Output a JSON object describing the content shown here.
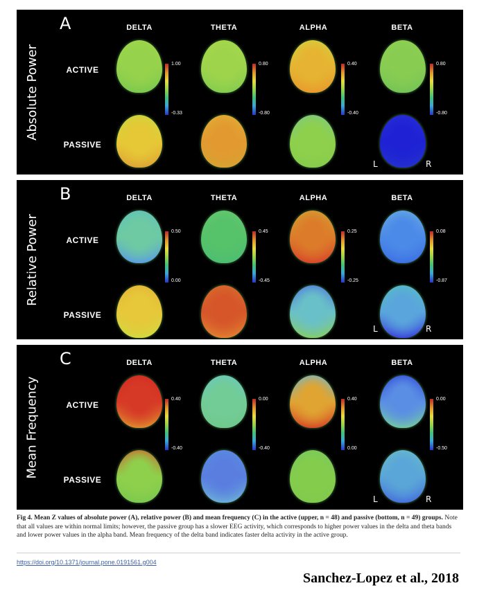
{
  "panels": [
    {
      "letter": "A",
      "title": "Absolute Power",
      "bands": [
        "DELTA",
        "THETA",
        "ALPHA",
        "BETA"
      ],
      "groups": [
        "ACTIVE",
        "PASSIVE"
      ],
      "scales": [
        {
          "max": "1.00",
          "min": "-0.33"
        },
        {
          "max": "0.80",
          "min": "-0.80"
        },
        {
          "max": "0.40",
          "min": "-0.40"
        },
        {
          "max": "0.80",
          "min": "-0.80"
        }
      ],
      "heads": [
        {
          "top": "#9fd64a",
          "mid": "#96d24c",
          "bottom": "#7cc84e"
        },
        {
          "top": "#a6d84a",
          "mid": "#9ed44c",
          "bottom": "#84cc4e"
        },
        {
          "top": "#d2d23e",
          "mid": "#e6b432",
          "bottom": "#e89a2c"
        },
        {
          "top": "#8ed050",
          "mid": "#88cc52",
          "bottom": "#74c456"
        },
        {
          "top": "#c8d83e",
          "mid": "#e6c836",
          "bottom": "#e0a434"
        },
        {
          "top": "#e0b234",
          "mid": "#e29a30",
          "bottom": "#d8a232"
        },
        {
          "top": "#7cc88a",
          "mid": "#8ed04c",
          "bottom": "#86cc4c"
        },
        {
          "top": "#2a30d8",
          "mid": "#1e22d4",
          "bottom": "#2430cc"
        }
      ],
      "sides": [
        "L",
        "R"
      ]
    },
    {
      "letter": "B",
      "title": "Relative Power",
      "bands": [
        "DELTA",
        "THETA",
        "ALPHA",
        "BETA"
      ],
      "groups": [
        "ACTIVE",
        "PASSIVE"
      ],
      "scales": [
        {
          "max": "0.50",
          "min": "0.00"
        },
        {
          "max": "0.45",
          "min": "-0.45"
        },
        {
          "max": "0.25",
          "min": "-0.25"
        },
        {
          "max": "0.08",
          "min": "-0.87"
        }
      ],
      "heads": [
        {
          "top": "#5ec0c0",
          "mid": "#6ecaa2",
          "bottom": "#5a9ee0"
        },
        {
          "top": "#66c870",
          "mid": "#56c26a",
          "bottom": "#4cbe72"
        },
        {
          "top": "#d2a432",
          "mid": "#dc7c2a",
          "bottom": "#d8462a"
        },
        {
          "top": "#6aaee0",
          "mid": "#4c8ae8",
          "bottom": "#3c70e4"
        },
        {
          "top": "#e6b234",
          "mid": "#e6c83a",
          "bottom": "#d4d83e"
        },
        {
          "top": "#d8702c",
          "mid": "#d6562a",
          "bottom": "#e08030"
        },
        {
          "top": "#4a72e0",
          "mid": "#6ac0c8",
          "bottom": "#84cc6a"
        },
        {
          "top": "#56c0c0",
          "mid": "#5aa6dc",
          "bottom": "#3c46dc"
        }
      ],
      "sides": [
        "L",
        "R"
      ]
    },
    {
      "letter": "C",
      "title": "Mean Frequency",
      "bands": [
        "DELTA",
        "THETA",
        "ALPHA",
        "BETA"
      ],
      "groups": [
        "ACTIVE",
        "PASSIVE"
      ],
      "scales": [
        {
          "max": "0.40",
          "min": "-0.40"
        },
        {
          "max": "0.00",
          "min": "-0.40"
        },
        {
          "max": "0.40",
          "min": "0.00"
        },
        {
          "max": "0.00",
          "min": "-0.50"
        }
      ],
      "heads": [
        {
          "top": "#d42822",
          "mid": "#d63a26",
          "bottom": "#de8a2e"
        },
        {
          "top": "#6ac8c4",
          "mid": "#72cc96",
          "bottom": "#70c88c"
        },
        {
          "top": "#6ab8d8",
          "mid": "#e0a432",
          "bottom": "#d64a26"
        },
        {
          "top": "#2e46d8",
          "mid": "#5a8ee4",
          "bottom": "#72c6a6"
        },
        {
          "top": "#d45a2a",
          "mid": "#8ed04c",
          "bottom": "#7cc84e"
        },
        {
          "top": "#5a8ee2",
          "mid": "#5a7ee0",
          "bottom": "#6aaed8"
        },
        {
          "top": "#78c860",
          "mid": "#84cc4c",
          "bottom": "#80ca4c"
        },
        {
          "top": "#6abcc8",
          "mid": "#5aa6d8",
          "bottom": "#4670dc"
        }
      ],
      "sides": [
        "L",
        "R"
      ]
    }
  ],
  "caption": {
    "lead": "Fig 4.  Mean Z values of absolute power (A), relative power (B) and mean frequency (C) in the active (upper, n = 48) and passive (bottom, n = 49) groups.",
    "body": " Note that all values are within normal limits; however, the passive group has a slower EEG activity, which corresponds to higher power values in the delta and theta bands and lower power values in the alpha band. Mean frequency of the delta band indicates faster delta activity in the active group."
  },
  "doi": "https://doi.org/10.1371/journal.pone.0191561.g004",
  "credit": "Sanchez-Lopez et al., 2018"
}
